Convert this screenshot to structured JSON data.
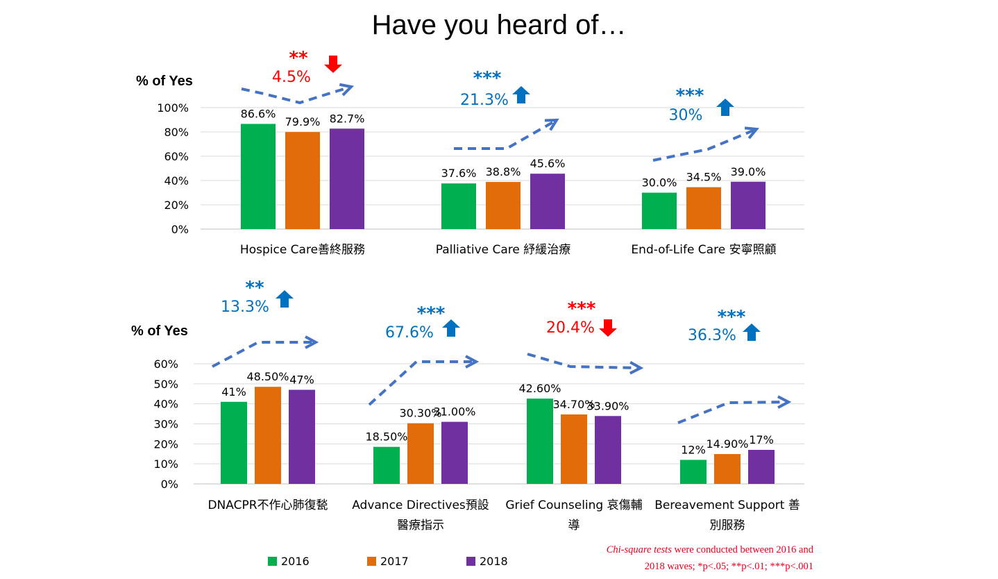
{
  "title": "Have you heard of…",
  "ylabel": "% of Yes",
  "colors": {
    "2016": "#00b050",
    "2017": "#e36c0a",
    "2018": "#7030a0",
    "up": "#0070c0",
    "down": "#ff0000",
    "trend": "#4472c4",
    "grid": "#d9d9d9"
  },
  "legend": {
    "y2016": "2016",
    "y2017": "2017",
    "y2018": "2018"
  },
  "note": {
    "italic": "Chi-square tests",
    "line1_rest": " were conducted between 2016 and",
    "line2": "2018 waves; *p<.05; **p<.01; ***p<.001"
  },
  "chart_data": [
    {
      "type": "bar",
      "ylabel": "% of Yes",
      "ylim": [
        0,
        100
      ],
      "yticks": [
        "0%",
        "20%",
        "40%",
        "60%",
        "80%",
        "100%"
      ],
      "categories": [
        [
          "Hospice Care善終服務"
        ],
        [
          "Palliative Care 紓緩治療"
        ],
        [
          "End-of-Life Care 安寧照顧"
        ]
      ],
      "series": [
        {
          "name": "2016",
          "values": [
            86.6,
            37.6,
            30.0
          ],
          "labels": [
            "86.6%",
            "37.6%",
            "30.0%"
          ]
        },
        {
          "name": "2017",
          "values": [
            79.9,
            38.8,
            34.5
          ],
          "labels": [
            "79.9%",
            "38.8%",
            "34.5%"
          ]
        },
        {
          "name": "2018",
          "values": [
            82.7,
            45.6,
            39.0
          ],
          "labels": [
            "82.7%",
            "45.6%",
            "39.0%"
          ]
        }
      ],
      "annotations": [
        {
          "stars": "**",
          "change": "4.5%",
          "direction": "down"
        },
        {
          "stars": "***",
          "change": "21.3%",
          "direction": "up"
        },
        {
          "stars": "***",
          "change": "30%",
          "direction": "up"
        }
      ]
    },
    {
      "type": "bar",
      "ylabel": "% of Yes",
      "ylim": [
        0,
        60
      ],
      "yticks": [
        "0%",
        "10%",
        "20%",
        "30%",
        "40%",
        "50%",
        "60%"
      ],
      "categories": [
        [
          "DNACPR不作心肺復甃"
        ],
        [
          "Advance Directives預設",
          "醫療指示"
        ],
        [
          "Grief Counseling 哀傷輔",
          "導"
        ],
        [
          "Bereavement Support 善",
          "別服務"
        ]
      ],
      "series": [
        {
          "name": "2016",
          "values": [
            41,
            18.5,
            42.6,
            12
          ],
          "labels": [
            "41%",
            "18.50%",
            "42.60%",
            "12%"
          ]
        },
        {
          "name": "2017",
          "values": [
            48.5,
            30.3,
            34.7,
            14.9
          ],
          "labels": [
            "48.50%",
            "30.30%",
            "34.70%",
            "14.90%"
          ]
        },
        {
          "name": "2018",
          "values": [
            47,
            31.0,
            33.9,
            17
          ],
          "labels": [
            "47%",
            "31.00%",
            "33.90%",
            "17%"
          ]
        }
      ],
      "annotations": [
        {
          "stars": "**",
          "change": "13.3%",
          "direction": "up"
        },
        {
          "stars": "***",
          "change": "67.6%",
          "direction": "up"
        },
        {
          "stars": "***",
          "change": "20.4%",
          "direction": "down"
        },
        {
          "stars": "***",
          "change": "36.3%",
          "direction": "up"
        }
      ]
    }
  ]
}
